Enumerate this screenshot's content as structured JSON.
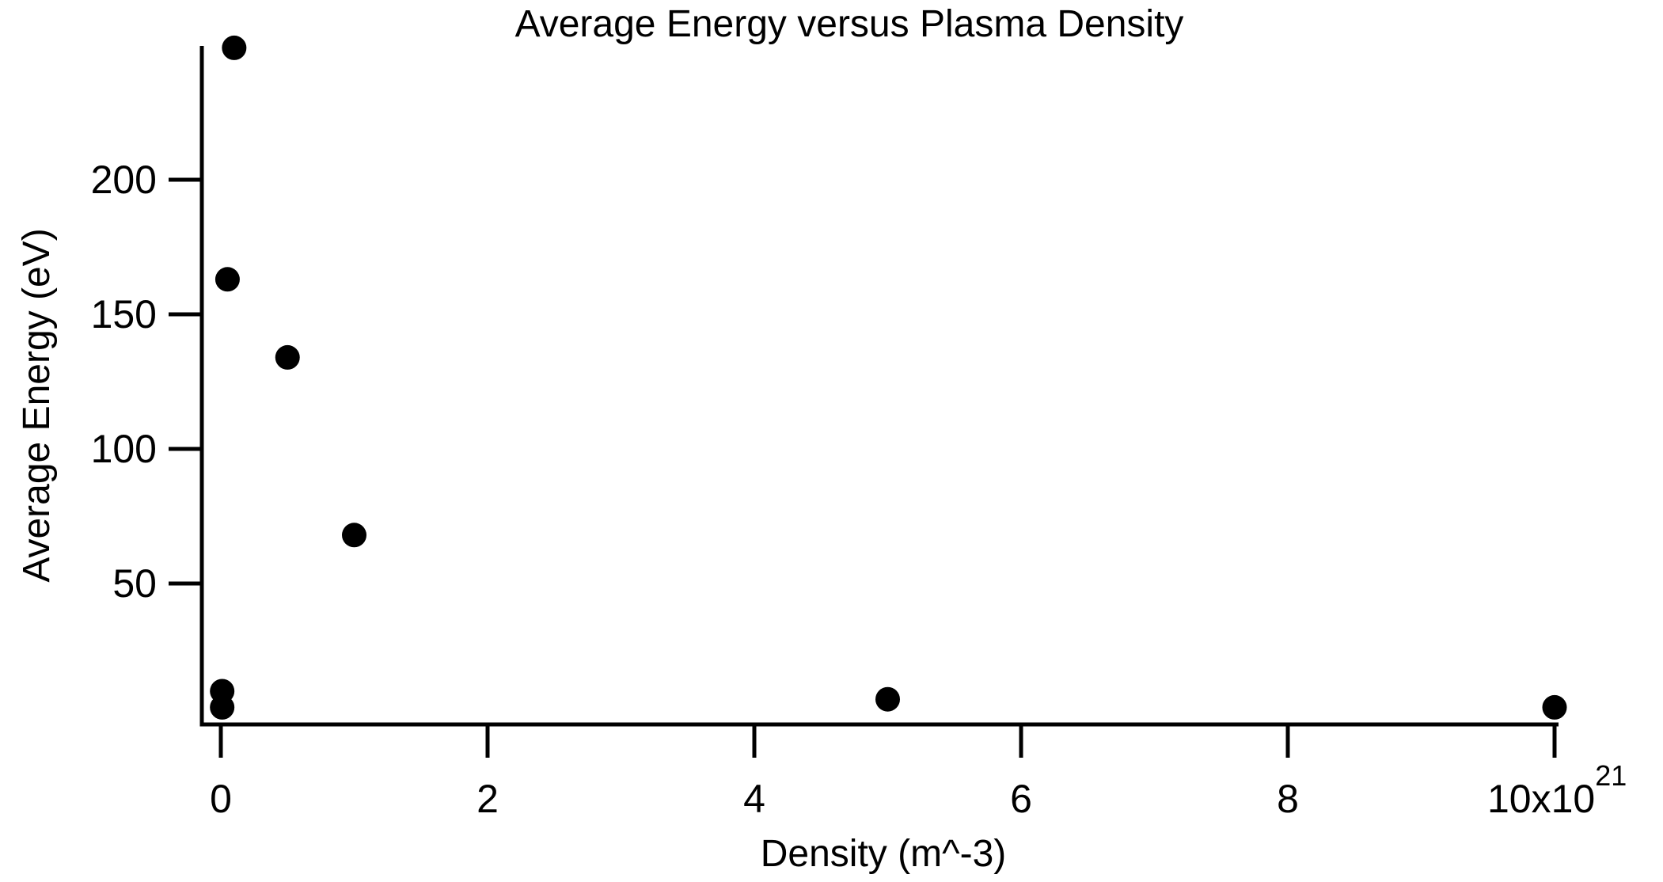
{
  "title": "Average Energy versus Plasma Density",
  "chart_data": {
    "type": "scatter",
    "title": "Average Energy versus Plasma Density",
    "xlabel": "Density (m^-3)",
    "ylabel": "Average Energy (eV)",
    "x_units_note": "x values in units of 10^21 m^-3",
    "xlim": [
      0,
      10.3
    ],
    "ylim": [
      0,
      250
    ],
    "grid": false,
    "legend": null,
    "x_ticks": [
      0,
      2,
      4,
      6,
      8,
      10
    ],
    "x_tick_labels": [
      "0",
      "2",
      "4",
      "6",
      "8",
      "10x10"
    ],
    "x_last_tick_exponent": "21",
    "y_ticks": [
      50,
      100,
      150,
      200
    ],
    "y_tick_labels": [
      "50",
      "100",
      "150",
      "200"
    ],
    "marker": {
      "shape": "circle",
      "color": "#000000",
      "radius_px": 15.5
    },
    "axis_color": "#000000",
    "background_color": "#ffffff",
    "points": [
      {
        "x": 0.01,
        "y": 10
      },
      {
        "x": 0.01,
        "y": 4
      },
      {
        "x": 0.05,
        "y": 163
      },
      {
        "x": 0.1,
        "y": 249
      },
      {
        "x": 0.5,
        "y": 134
      },
      {
        "x": 1.0,
        "y": 68
      },
      {
        "x": 5.0,
        "y": 7
      },
      {
        "x": 10.0,
        "y": 4
      }
    ]
  }
}
